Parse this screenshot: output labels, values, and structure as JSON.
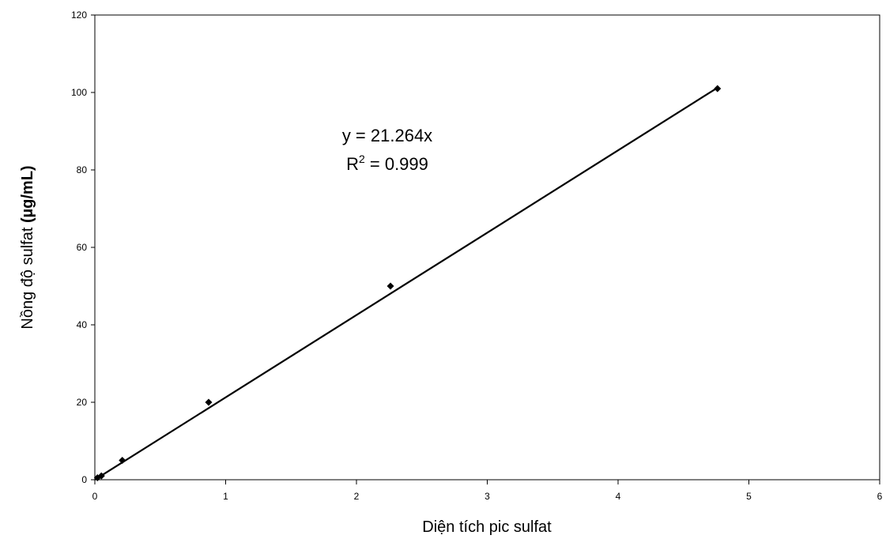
{
  "chart_data": {
    "type": "scatter",
    "xlabel": "Diện tích pic sulfat",
    "ylabel_main": "Nồng độ sulfat ",
    "ylabel_unit": "(µg/mL)",
    "xlim": [
      0,
      6
    ],
    "ylim": [
      0,
      120
    ],
    "x_ticks": [
      "0",
      "1",
      "2",
      "3",
      "4",
      "5",
      "6"
    ],
    "y_ticks": [
      "0",
      "20",
      "40",
      "60",
      "80",
      "100",
      "120"
    ],
    "series": [
      {
        "points": [
          {
            "x": 0.02,
            "y": 0.5
          },
          {
            "x": 0.05,
            "y": 1
          },
          {
            "x": 0.21,
            "y": 5
          },
          {
            "x": 0.87,
            "y": 20
          },
          {
            "x": 2.26,
            "y": 50
          },
          {
            "x": 4.76,
            "y": 101
          }
        ]
      }
    ],
    "trendline": {
      "type": "linear",
      "slope": 21.264,
      "intercept": 0,
      "x_range": [
        0,
        4.76
      ]
    },
    "annotation": {
      "equation": "y = 21.264x",
      "r2_prefix": "R",
      "r2_sup": "2",
      "r2_value": " = 0.999"
    },
    "grid": false
  }
}
